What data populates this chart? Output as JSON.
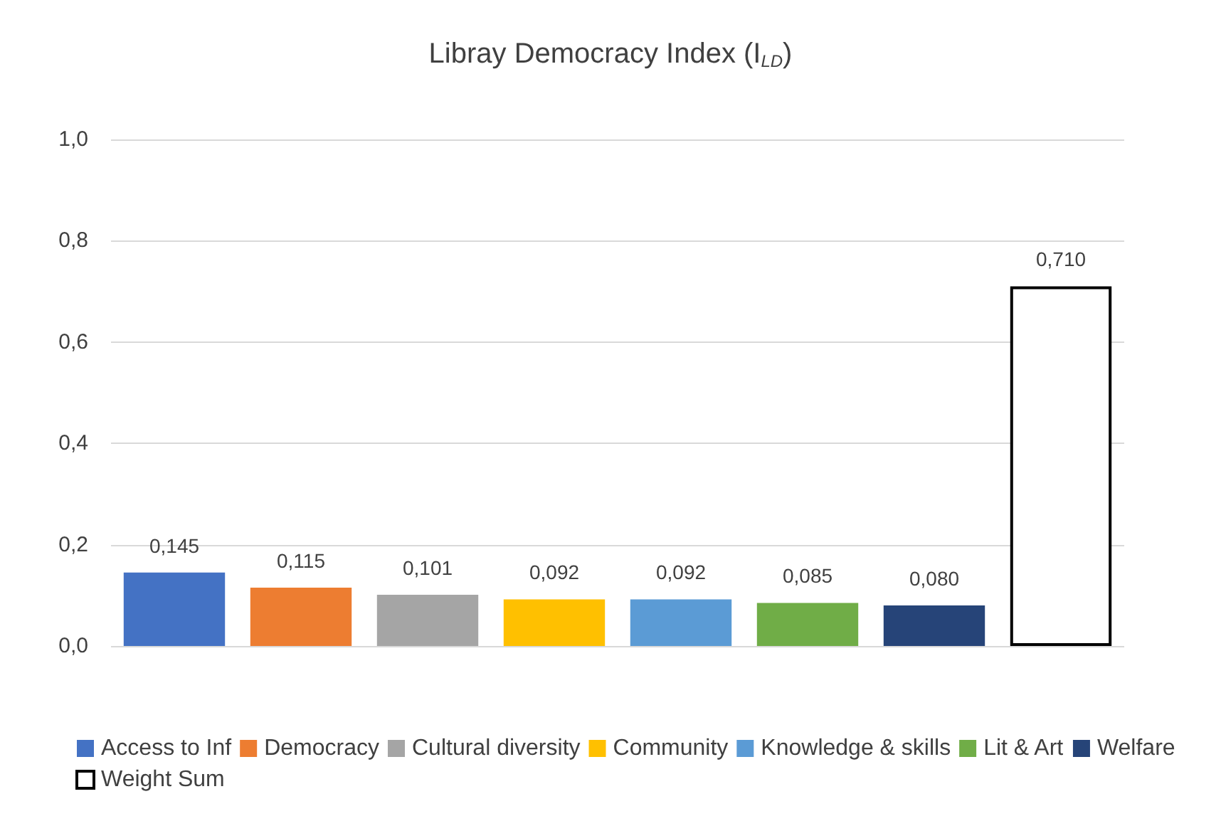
{
  "chart_data": {
    "type": "bar",
    "title": "Libray Democracy Index (I$_{LD}$)",
    "categories": [
      null,
      null,
      null,
      null,
      null,
      null,
      null,
      null
    ],
    "series": [
      {
        "name": "Access to Inf",
        "color": "#4472c4",
        "values": [
          0.145,
          null,
          null,
          null,
          null,
          null,
          null,
          null
        ],
        "value_labels": [
          "0,145",
          null,
          null,
          null,
          null,
          null,
          null,
          null
        ]
      },
      {
        "name": "Democracy",
        "color": "#ed7d31",
        "values": [
          null,
          0.115,
          null,
          null,
          null,
          null,
          null,
          null
        ],
        "value_labels": [
          null,
          "0,115",
          null,
          null,
          null,
          null,
          null,
          null
        ]
      },
      {
        "name": "Cultural diversity",
        "color": "#a5a5a5",
        "values": [
          null,
          null,
          0.101,
          null,
          null,
          null,
          null,
          null
        ],
        "value_labels": [
          null,
          null,
          "0,101",
          null,
          null,
          null,
          null,
          null
        ]
      },
      {
        "name": "Community",
        "color": "#ffc000",
        "values": [
          null,
          null,
          null,
          0.092,
          null,
          null,
          null,
          null
        ],
        "value_labels": [
          null,
          null,
          null,
          "0,092",
          null,
          null,
          null,
          null
        ]
      },
      {
        "name": "Knowledge & skills",
        "color": "#5b9bd5",
        "values": [
          null,
          null,
          null,
          null,
          0.092,
          null,
          null,
          null
        ],
        "value_labels": [
          null,
          null,
          null,
          null,
          "0,092",
          null,
          null,
          null
        ]
      },
      {
        "name": "Lit & Art",
        "color": "#70ad47",
        "values": [
          null,
          null,
          null,
          null,
          null,
          0.085,
          null,
          null
        ],
        "value_labels": [
          null,
          null,
          null,
          null,
          null,
          "0,085",
          null,
          null
        ]
      },
      {
        "name": "Welfare",
        "color": "#264478",
        "values": [
          null,
          null,
          null,
          null,
          null,
          null,
          0.08,
          null
        ],
        "value_labels": [
          null,
          null,
          null,
          null,
          null,
          null,
          "0,080",
          null
        ]
      },
      {
        "name": "Weight Sum",
        "color": "#ffffff",
        "values": [
          null,
          null,
          null,
          null,
          null,
          null,
          null,
          0.71
        ],
        "value_labels": [
          null,
          null,
          null,
          null,
          null,
          null,
          null,
          "0,710"
        ]
      }
    ],
    "ylim": [
      0,
      1
    ],
    "yticks": [
      {
        "value": 0,
        "label": "0,0"
      },
      {
        "value": 0.2,
        "label": "0,2"
      },
      {
        "value": 0.4,
        "label": "0,4"
      },
      {
        "value": 0.6,
        "label": "0,6"
      },
      {
        "value": 0.8,
        "label": "0,8"
      },
      {
        "value": 1,
        "label": "1,0"
      }
    ],
    "grid": "y",
    "legend": "bottom"
  }
}
